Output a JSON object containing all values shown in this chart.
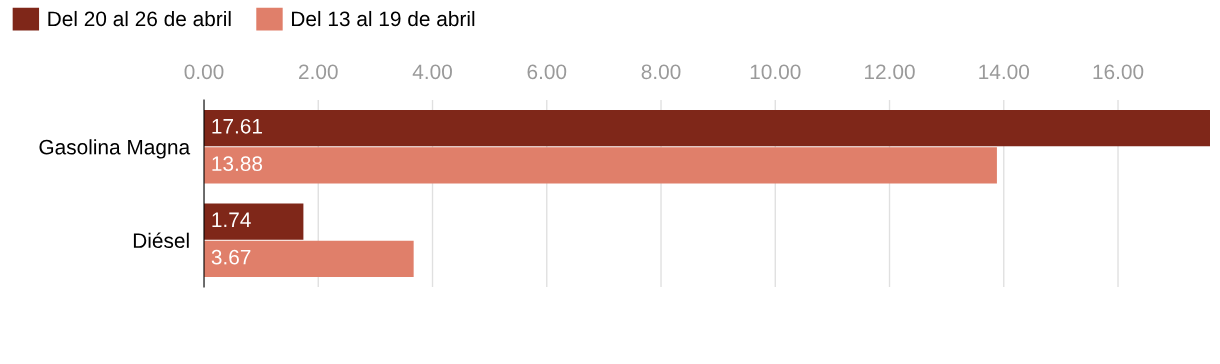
{
  "chart_data": {
    "type": "bar",
    "orientation": "horizontal",
    "categories": [
      "Gasolina Magna",
      "Diésel"
    ],
    "series": [
      {
        "name": "Del 20 al 26 de abril",
        "color": "#7f2719",
        "values": [
          17.61,
          1.74
        ]
      },
      {
        "name": "Del 13 al 19 de abril",
        "color": "#e07f6a",
        "values": [
          13.88,
          3.67
        ]
      }
    ],
    "xlim": [
      0,
      17.61
    ],
    "xticks": [
      {
        "value": 0,
        "label": "0.00"
      },
      {
        "value": 2,
        "label": "2.00"
      },
      {
        "value": 4,
        "label": "4.00"
      },
      {
        "value": 6,
        "label": "6.00"
      },
      {
        "value": 8,
        "label": "8.00"
      },
      {
        "value": 10,
        "label": "10.00"
      },
      {
        "value": 12,
        "label": "12.00"
      },
      {
        "value": 14,
        "label": "14.00"
      },
      {
        "value": 16,
        "label": "16.00"
      }
    ],
    "grid": "x",
    "legend": "top left",
    "data_labels": true
  }
}
